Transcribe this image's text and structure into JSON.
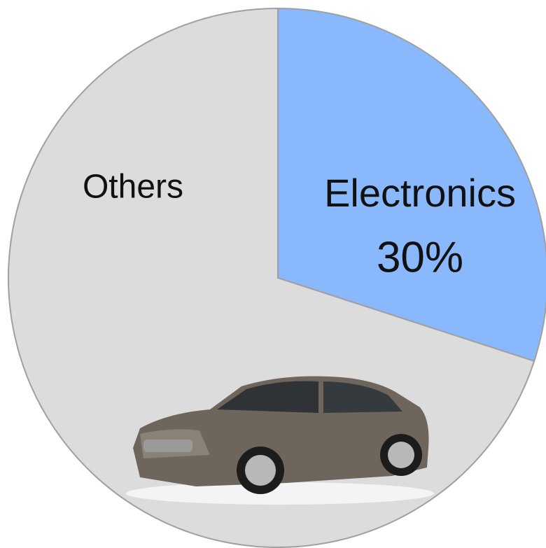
{
  "chart_data": {
    "type": "pie",
    "categories": [
      "Electronics",
      "Others"
    ],
    "values": [
      30,
      70
    ],
    "value_labels": [
      "30%",
      null
    ],
    "colors": [
      "#8ab8fc",
      "#dcdcdc"
    ]
  }
}
